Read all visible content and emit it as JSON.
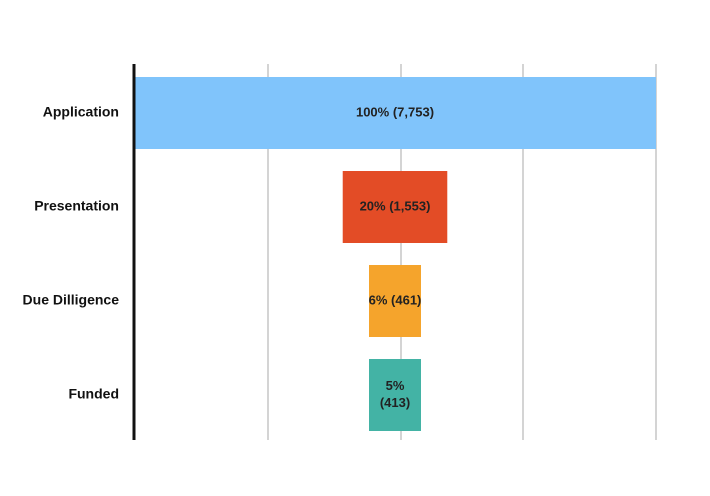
{
  "chart_data": {
    "type": "bar",
    "subtype": "funnel",
    "categories": [
      "Application",
      "Presentation",
      "Due Dilligence",
      "Funded"
    ],
    "values": [
      7753,
      1553,
      461,
      413
    ],
    "percents": [
      100,
      20,
      6,
      5
    ],
    "data_labels": [
      "100% (7,753)",
      "20% (1,553)",
      "6% (461)",
      "5%\n(413)"
    ],
    "colors": [
      "#80c4fb",
      "#e34c26",
      "#f5a42c",
      "#43b3a5"
    ],
    "grid": true,
    "title": "",
    "xlabel": "",
    "ylabel": ""
  }
}
